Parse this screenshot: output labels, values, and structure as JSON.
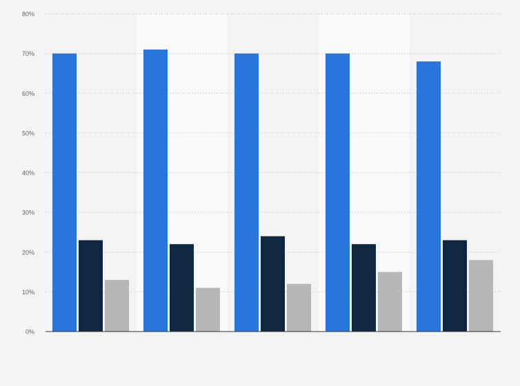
{
  "chart_data": {
    "type": "bar",
    "title": "",
    "xlabel": "",
    "ylabel": "",
    "categories": [
      "",
      "",
      "",
      "",
      ""
    ],
    "ylim": [
      0,
      80
    ],
    "y_tick_values": [
      0,
      10,
      20,
      30,
      40,
      50,
      60,
      70,
      80
    ],
    "y_tick_labels": [
      "0%",
      "10%",
      "20%",
      "30%",
      "40%",
      "50%",
      "60%",
      "70%",
      "80%"
    ],
    "grid": true,
    "legend": "none",
    "series": [
      {
        "values": [
          70,
          71,
          70,
          70,
          68
        ],
        "color": "#2876dd"
      },
      {
        "values": [
          23,
          22,
          24,
          22,
          23
        ],
        "color": "#0f2740"
      },
      {
        "values": [
          13,
          11,
          12,
          15,
          18
        ],
        "color": "#b7b7b7"
      }
    ],
    "colors": {
      "background": "#f4f4f4",
      "band": "#f9f9f9",
      "gridline": "#d9d9d9",
      "axis": "#333333",
      "tick_label": "#666666"
    }
  }
}
